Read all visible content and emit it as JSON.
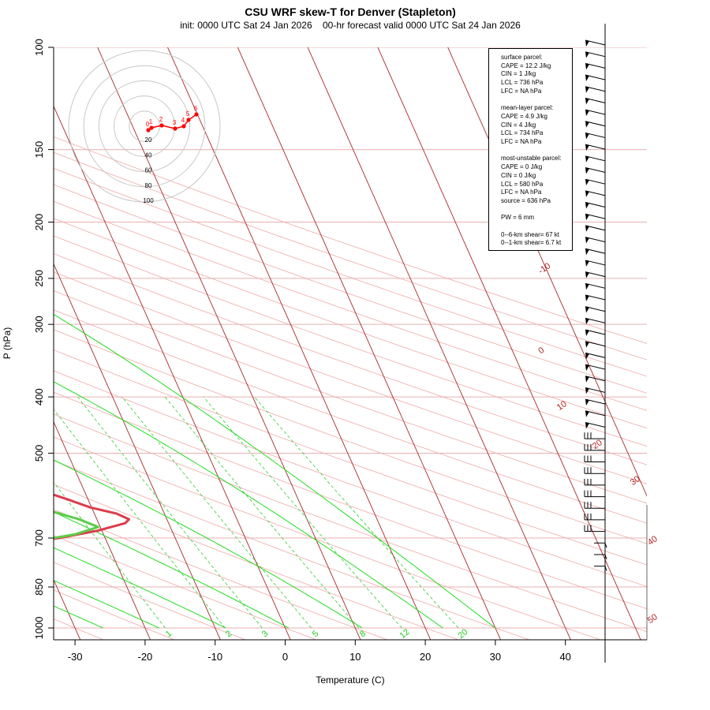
{
  "chart_data": {
    "type": "skew-T log-P",
    "title": "CSU WRF skew-T for Denver (Stapleton)",
    "subtitle": "init: 0000 UTC Sat 24 Jan 2026    00-hr forecast valid 0000 UTC Sat 24 Jan 2026",
    "xlabel": "Temperature (C)",
    "ylabel": "P (hPa)",
    "pressure_ticks": [
      100,
      150,
      200,
      250,
      300,
      400,
      500,
      700,
      850,
      1000
    ],
    "temperature_ticks": [
      -30,
      -20,
      -10,
      0,
      10,
      20,
      30,
      40
    ],
    "isotherm_labels": [
      -10,
      0,
      10,
      20,
      30,
      40,
      50
    ],
    "mixing_ratio_labels": [
      "1",
      "2",
      "3",
      "5",
      "8",
      "12",
      "20"
    ],
    "xlim": [
      -33,
      52
    ],
    "ylim_hPa": [
      1000,
      100
    ],
    "colors": {
      "temperature": "#dd3c4c",
      "dewpoint": "#5dcc4a",
      "isotherm": "#a52a2a",
      "moist_adiabat": "#22dd22",
      "mixing_ratio": "#33cc33",
      "grid_dry_adiabat": "#f0a8a8"
    },
    "series": [
      {
        "name": "Temperature",
        "p": [
          790,
          760,
          740,
          722,
          700,
          680,
          660,
          650,
          635,
          620,
          600,
          570,
          540,
          500,
          450,
          400,
          350,
          300,
          280,
          265,
          245,
          215,
          195,
          175,
          160,
          145,
          125,
          110
        ],
        "temp": [
          -40.9,
          -40.6,
          -38.8,
          -34.9,
          -26.6,
          -20.6,
          -16.2,
          -15.4,
          -16.9,
          -20.2,
          -23.0,
          -27.8,
          -30.8,
          -35.4,
          -41.1,
          -48.9,
          -58.6,
          -71.5,
          -76.1,
          -78.9,
          -80.0,
          -78.9,
          -77.5,
          -77.1,
          -75.8,
          -73.4,
          -70.7,
          -68.1
        ]
      },
      {
        "name": "Dewpoint",
        "p": [
          790,
          760,
          740,
          722,
          710,
          690,
          670,
          650,
          620,
          570,
          520,
          480,
          440,
          400,
          350,
          300,
          270,
          245,
          215,
          198,
          185,
          175
        ],
        "temp": [
          -49.5,
          -48.4,
          -44.7,
          -37.3,
          -30.5,
          -24.1,
          -20.3,
          -22.5,
          -27.7,
          -37.0,
          -43.4,
          -46.3,
          -49.9,
          -54.8,
          -63.4,
          -76.2,
          -86.8,
          -95.1,
          -98.4,
          -101.1,
          -101.0,
          -93.0
        ]
      }
    ],
    "surface_parcel": {
      "CAPE": "12.2 J/kg",
      "CIN": "1 J/kg",
      "LCL": "736 hPa",
      "LFC": "NA hPa"
    },
    "mean_layer_parcel": {
      "CAPE": "4.9 J/kg",
      "CIN": "4 J/kg",
      "LCL": "734 hPa",
      "LFC": "NA hPa"
    },
    "most_unstable_parcel": {
      "CAPE": "0 J/kg",
      "CIN": "0 J/kg",
      "LCL": "580 hPa",
      "LFC": "NA hPa",
      "source": "636 hPa"
    },
    "PW": "6 mm",
    "shear_0_6km": "67 kt",
    "shear_0_1km": "6.7 kt",
    "hodograph": {
      "ring_labels": [
        "20",
        "40",
        "60",
        "80",
        "100"
      ],
      "height_labels": [
        "0",
        "1",
        "2",
        "3",
        "4",
        "5",
        "6"
      ]
    },
    "wind_barbs": {
      "count": 46,
      "pressure_range_hPa": [
        790,
        100
      ]
    }
  },
  "stats_lines": [
    "surface parcel:",
    "CAPE = 12.2 J/kg",
    "CIN = 1 J/kg",
    "LCL = 736 hPa",
    "LFC = NA hPa",
    "",
    "mean-layer parcel:",
    "CAPE = 4.9 J/kg",
    "CIN = 4 J/kg",
    "LCL = 734 hPa",
    "LFC = NA hPa",
    "",
    "most-unstable parcel:",
    "CAPE = 0 J/kg",
    "CIN = 0 J/kg",
    "LCL = 580 hPa",
    "LFC = NA hPa",
    "source = 636 hPa",
    "",
    "PW =  6 mm",
    "",
    "0--6-km shear= 67 kt",
    "0--1-km shear= 6.7 kt"
  ]
}
